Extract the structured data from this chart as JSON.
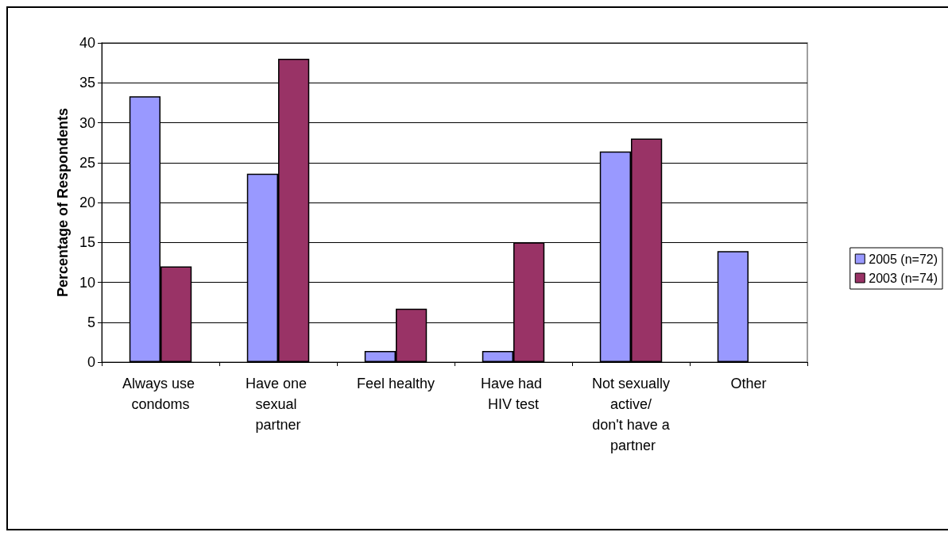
{
  "chart_data": {
    "type": "bar",
    "ylabel": "Percentage of Respondents",
    "categories": [
      "Always use condoms",
      "Have one sexual partner",
      "Feel healthy",
      "Have had HIV test",
      "Not sexually active/ don't have a partner",
      "Other"
    ],
    "series": [
      {
        "name": "2005 (n=72)",
        "color": "#9999ff",
        "values": [
          33.3,
          23.6,
          1.4,
          1.4,
          26.4,
          13.9
        ]
      },
      {
        "name": "2003 (n=74)",
        "color": "#993366",
        "values": [
          12.0,
          38.0,
          6.7,
          15.0,
          28.0,
          null
        ]
      }
    ],
    "ylim": [
      0,
      40
    ],
    "yticks": [
      0,
      5,
      10,
      15,
      20,
      25,
      30,
      35,
      40
    ],
    "grid": "y",
    "legend": "right"
  }
}
